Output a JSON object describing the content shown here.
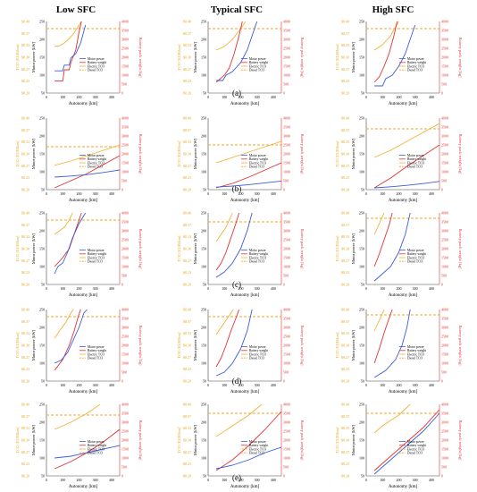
{
  "figure": {
    "sfc_titles": [
      "Low SFC",
      "Typical SFC",
      "High SFC"
    ],
    "row_labels": [
      "(a)",
      "(b)",
      "(c)",
      "(d)",
      "(e)"
    ],
    "xlabel": "Autonomy [km]",
    "ylabel_left_tco": "TCO [EUR/km]",
    "ylabel_motor": "Motor power [kW]",
    "ylabel_right": "Battery pack weight [kg]",
    "x_ticks": [
      0,
      100,
      200,
      300,
      400
    ],
    "tco_ticks": [
      "$0.40",
      "$0.37",
      "$0.33",
      "$0.30",
      "$0.27",
      "$0.23",
      "$0.20"
    ],
    "motor_ticks": [
      250,
      200,
      150,
      100,
      50
    ],
    "battery_ticks": [
      4000,
      3500,
      3000,
      2500,
      2000,
      1500,
      1000,
      500,
      0
    ],
    "legend": [
      "Motor power",
      "Battery weight",
      "Electric TCO",
      "Diesel TCO"
    ],
    "colors": {
      "motor": "#3b5bdb",
      "battery": "#e03131",
      "electric_tco": "#f2b134",
      "diesel_tco": "#f5a623",
      "axis_left": "#e8a317",
      "axis_right": "#e03131"
    }
  },
  "chart_data": {
    "type": "line",
    "xlim": [
      0,
      450
    ],
    "motor_ylim": [
      50,
      250
    ],
    "battery_ylim": [
      0,
      4000
    ],
    "tco_ylim": [
      0.2,
      0.4
    ],
    "panels": [
      {
        "row": "(a)",
        "sfc": "Low SFC",
        "motor_power": [
          [
            50,
            112
          ],
          [
            100,
            112
          ],
          [
            110,
            128
          ],
          [
            140,
            128
          ],
          [
            150,
            148
          ],
          [
            180,
            160
          ],
          [
            210,
            190
          ],
          [
            240,
            240
          ]
        ],
        "battery_weight": [
          [
            50,
            680
          ],
          [
            100,
            680
          ],
          [
            110,
            1300
          ],
          [
            140,
            1300
          ],
          [
            150,
            1700
          ],
          [
            180,
            2400
          ],
          [
            200,
            3400
          ],
          [
            215,
            4000
          ]
        ],
        "electric_tco": [
          [
            50,
            0.33
          ],
          [
            80,
            0.332
          ],
          [
            110,
            0.34
          ],
          [
            140,
            0.352
          ],
          [
            170,
            0.368
          ],
          [
            200,
            0.39
          ],
          [
            215,
            0.4
          ]
        ],
        "diesel_tco": 0.38
      },
      {
        "row": "(a)",
        "sfc": "Typical SFC",
        "motor_power": [
          [
            50,
            85
          ],
          [
            90,
            85
          ],
          [
            110,
            100
          ],
          [
            150,
            110
          ],
          [
            200,
            135
          ],
          [
            240,
            170
          ],
          [
            270,
            210
          ],
          [
            300,
            250
          ]
        ],
        "battery_weight": [
          [
            50,
            600
          ],
          [
            100,
            1000
          ],
          [
            130,
            1400
          ],
          [
            160,
            2200
          ],
          [
            190,
            3200
          ],
          [
            210,
            4000
          ]
        ],
        "electric_tco": [
          [
            50,
            0.32
          ],
          [
            100,
            0.33
          ],
          [
            150,
            0.35
          ],
          [
            200,
            0.38
          ],
          [
            230,
            0.4
          ]
        ],
        "diesel_tco": 0.38
      },
      {
        "row": "(a)",
        "sfc": "High SFC",
        "motor_power": [
          [
            50,
            70
          ],
          [
            100,
            70
          ],
          [
            120,
            90
          ],
          [
            160,
            100
          ],
          [
            200,
            125
          ],
          [
            240,
            160
          ],
          [
            270,
            200
          ],
          [
            300,
            240
          ]
        ],
        "battery_weight": [
          [
            50,
            600
          ],
          [
            80,
            900
          ],
          [
            110,
            1500
          ],
          [
            140,
            2200
          ],
          [
            170,
            3200
          ],
          [
            190,
            4000
          ]
        ],
        "electric_tco": [
          [
            50,
            0.32
          ],
          [
            100,
            0.335
          ],
          [
            150,
            0.36
          ],
          [
            180,
            0.385
          ],
          [
            200,
            0.4
          ]
        ],
        "diesel_tco": 0.38
      },
      {
        "row": "(b)",
        "sfc": "Low SFC",
        "motor_power": [
          [
            50,
            85
          ],
          [
            150,
            88
          ],
          [
            250,
            92
          ],
          [
            350,
            98
          ],
          [
            450,
            105
          ]
        ],
        "battery_weight": [
          [
            50,
            100
          ],
          [
            150,
            500
          ],
          [
            250,
            900
          ],
          [
            350,
            1400
          ],
          [
            450,
            1900
          ]
        ],
        "electric_tco": [
          [
            50,
            0.268
          ],
          [
            150,
            0.28
          ],
          [
            250,
            0.295
          ],
          [
            350,
            0.31
          ],
          [
            450,
            0.325
          ]
        ],
        "diesel_tco": 0.32
      },
      {
        "row": "(b)",
        "sfc": "Typical SFC",
        "motor_power": [
          [
            50,
            57
          ],
          [
            150,
            60
          ],
          [
            250,
            64
          ],
          [
            350,
            69
          ],
          [
            450,
            74
          ]
        ],
        "battery_weight": [
          [
            50,
            100
          ],
          [
            150,
            350
          ],
          [
            250,
            700
          ],
          [
            350,
            1100
          ],
          [
            450,
            1500
          ]
        ],
        "electric_tco": [
          [
            50,
            0.275
          ],
          [
            150,
            0.29
          ],
          [
            250,
            0.305
          ],
          [
            350,
            0.32
          ],
          [
            450,
            0.335
          ]
        ],
        "diesel_tco": 0.325
      },
      {
        "row": "(b)",
        "sfc": "High SFC",
        "motor_power": [
          [
            50,
            55
          ],
          [
            150,
            58
          ],
          [
            250,
            62
          ],
          [
            350,
            67
          ],
          [
            450,
            73
          ]
        ],
        "battery_weight": [
          [
            50,
            100
          ],
          [
            150,
            650
          ],
          [
            250,
            1300
          ],
          [
            350,
            1900
          ],
          [
            450,
            2500
          ]
        ],
        "electric_tco": [
          [
            50,
            0.29
          ],
          [
            150,
            0.31
          ],
          [
            250,
            0.335
          ],
          [
            350,
            0.36
          ],
          [
            450,
            0.385
          ]
        ],
        "diesel_tco": 0.37
      },
      {
        "row": "(c)",
        "sfc": "Low SFC",
        "motor_power": [
          [
            50,
            80
          ],
          [
            70,
            100
          ],
          [
            100,
            110
          ],
          [
            130,
            140
          ],
          [
            160,
            180
          ],
          [
            200,
            220
          ],
          [
            240,
            250
          ]
        ],
        "battery_weight": [
          [
            50,
            1000
          ],
          [
            100,
            1500
          ],
          [
            140,
            2000
          ],
          [
            170,
            2800
          ],
          [
            200,
            3600
          ],
          [
            215,
            4000
          ]
        ],
        "electric_tco": [
          [
            50,
            0.34
          ],
          [
            80,
            0.35
          ],
          [
            110,
            0.36
          ],
          [
            140,
            0.38
          ],
          [
            160,
            0.4
          ]
        ],
        "diesel_tco": 0.38
      },
      {
        "row": "(c)",
        "sfc": "Typical SFC",
        "motor_power": [
          [
            50,
            70
          ],
          [
            100,
            85
          ],
          [
            150,
            110
          ],
          [
            200,
            150
          ],
          [
            240,
            200
          ],
          [
            270,
            250
          ]
        ],
        "battery_weight": [
          [
            50,
            800
          ],
          [
            80,
            1200
          ],
          [
            110,
            1800
          ],
          [
            140,
            2600
          ],
          [
            170,
            3400
          ],
          [
            190,
            4000
          ]
        ],
        "electric_tco": [
          [
            50,
            0.32
          ],
          [
            80,
            0.34
          ],
          [
            110,
            0.36
          ],
          [
            130,
            0.38
          ],
          [
            150,
            0.4
          ]
        ],
        "diesel_tco": 0.375
      },
      {
        "row": "(c)",
        "sfc": "High SFC",
        "motor_power": [
          [
            50,
            60
          ],
          [
            100,
            80
          ],
          [
            150,
            100
          ],
          [
            200,
            140
          ],
          [
            240,
            190
          ],
          [
            270,
            250
          ]
        ],
        "battery_weight": [
          [
            50,
            1000
          ],
          [
            80,
            1700
          ],
          [
            110,
            2500
          ],
          [
            140,
            3300
          ],
          [
            160,
            4000
          ]
        ],
        "electric_tco": [
          [
            50,
            0.34
          ],
          [
            70,
            0.36
          ],
          [
            90,
            0.38
          ],
          [
            110,
            0.4
          ]
        ],
        "diesel_tco": 0.385
      },
      {
        "row": "(d)",
        "sfc": "Low SFC",
        "motor_power": [
          [
            50,
            100
          ],
          [
            90,
            108
          ],
          [
            130,
            130
          ],
          [
            160,
            160
          ],
          [
            200,
            200
          ],
          [
            230,
            240
          ],
          [
            250,
            250
          ]
        ],
        "battery_weight": [
          [
            50,
            600
          ],
          [
            100,
            1200
          ],
          [
            140,
            2000
          ],
          [
            170,
            2800
          ],
          [
            195,
            3600
          ],
          [
            210,
            4000
          ]
        ],
        "electric_tco": [
          [
            50,
            0.32
          ],
          [
            80,
            0.34
          ],
          [
            120,
            0.365
          ],
          [
            150,
            0.39
          ],
          [
            165,
            0.4
          ]
        ],
        "diesel_tco": 0.38
      },
      {
        "row": "(d)",
        "sfc": "Typical SFC",
        "motor_power": [
          [
            50,
            65
          ],
          [
            100,
            75
          ],
          [
            150,
            100
          ],
          [
            200,
            140
          ],
          [
            240,
            190
          ],
          [
            270,
            250
          ]
        ],
        "battery_weight": [
          [
            50,
            800
          ],
          [
            80,
            1300
          ],
          [
            110,
            2000
          ],
          [
            140,
            2800
          ],
          [
            170,
            3500
          ],
          [
            190,
            4000
          ]
        ],
        "electric_tco": [
          [
            50,
            0.33
          ],
          [
            80,
            0.35
          ],
          [
            110,
            0.37
          ],
          [
            140,
            0.39
          ],
          [
            155,
            0.4
          ]
        ],
        "diesel_tco": 0.38
      },
      {
        "row": "(d)",
        "sfc": "High SFC",
        "motor_power": [
          [
            50,
            60
          ],
          [
            120,
            80
          ],
          [
            180,
            110
          ],
          [
            220,
            150
          ],
          [
            250,
            200
          ],
          [
            270,
            250
          ]
        ],
        "battery_weight": [
          [
            50,
            1000
          ],
          [
            80,
            1800
          ],
          [
            110,
            2700
          ],
          [
            140,
            3500
          ],
          [
            160,
            4000
          ]
        ],
        "electric_tco": [
          [
            50,
            0.34
          ],
          [
            70,
            0.36
          ],
          [
            90,
            0.38
          ],
          [
            110,
            0.4
          ]
        ],
        "diesel_tco": 0.385
      },
      {
        "row": "(e)",
        "sfc": "Low SFC",
        "motor_power": [
          [
            50,
            100
          ],
          [
            150,
            105
          ],
          [
            250,
            115
          ],
          [
            350,
            125
          ],
          [
            450,
            135
          ]
        ],
        "battery_weight": [
          [
            50,
            400
          ],
          [
            150,
            800
          ],
          [
            250,
            1300
          ],
          [
            350,
            1900
          ],
          [
            450,
            2600
          ]
        ],
        "electric_tco": [
          [
            50,
            0.33
          ],
          [
            150,
            0.35
          ],
          [
            250,
            0.375
          ],
          [
            330,
            0.4
          ]
        ],
        "diesel_tco": 0.37
      },
      {
        "row": "(e)",
        "sfc": "Typical SFC",
        "motor_power": [
          [
            50,
            70
          ],
          [
            150,
            80
          ],
          [
            250,
            95
          ],
          [
            350,
            115
          ],
          [
            450,
            130
          ]
        ],
        "battery_weight": [
          [
            50,
            300
          ],
          [
            150,
            900
          ],
          [
            250,
            1700
          ],
          [
            350,
            2600
          ],
          [
            450,
            3600
          ]
        ],
        "electric_tco": [
          [
            50,
            0.31
          ],
          [
            150,
            0.34
          ],
          [
            250,
            0.37
          ],
          [
            330,
            0.4
          ]
        ],
        "diesel_tco": 0.375
      },
      {
        "row": "(e)",
        "sfc": "High SFC",
        "motor_power": [
          [
            50,
            55
          ],
          [
            150,
            95
          ],
          [
            250,
            135
          ],
          [
            350,
            175
          ],
          [
            450,
            225
          ]
        ],
        "battery_weight": [
          [
            50,
            300
          ],
          [
            150,
            1100
          ],
          [
            250,
            1900
          ],
          [
            350,
            2700
          ],
          [
            450,
            3700
          ]
        ],
        "electric_tco": [
          [
            50,
            0.32
          ],
          [
            100,
            0.34
          ],
          [
            200,
            0.37
          ],
          [
            270,
            0.4
          ]
        ],
        "diesel_tco": 0.375
      }
    ]
  }
}
